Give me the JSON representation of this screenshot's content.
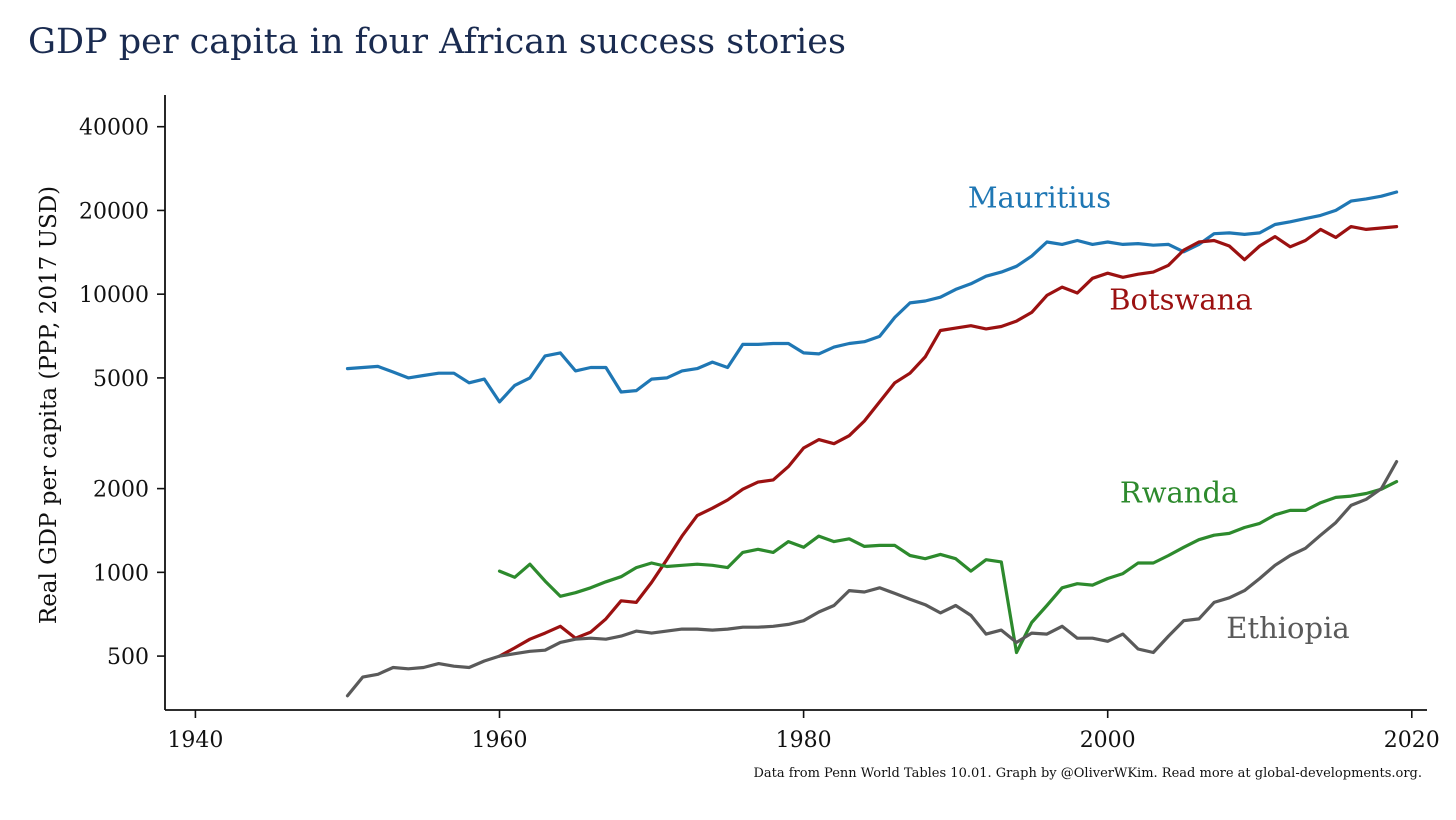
{
  "chart_data": {
    "type": "line",
    "title": "GDP per capita in four African success stories",
    "xlabel": "",
    "ylabel": "Real GDP per capita (PPP, 2017 USD)",
    "yscale": "log",
    "xlim": [
      1938,
      2021
    ],
    "ylim": [
      320,
      52000
    ],
    "x_ticks": [
      1940,
      1960,
      1980,
      2000,
      2020
    ],
    "y_ticks": [
      500,
      1000,
      2000,
      5000,
      10000,
      20000,
      40000
    ],
    "grid": false,
    "legend": "inline labels",
    "source_note": "Data from Penn World Tables 10.01. Graph by @OliverWKim. Read more at global-developments.org.",
    "series": [
      {
        "name": "Mauritius",
        "color": "#1f77b4",
        "x": [
          1950,
          1951,
          1952,
          1953,
          1954,
          1955,
          1956,
          1957,
          1958,
          1959,
          1960,
          1961,
          1962,
          1963,
          1964,
          1965,
          1966,
          1967,
          1968,
          1969,
          1970,
          1971,
          1972,
          1973,
          1974,
          1975,
          1976,
          1977,
          1978,
          1979,
          1980,
          1981,
          1982,
          1983,
          1984,
          1985,
          1986,
          1987,
          1988,
          1989,
          1990,
          1991,
          1992,
          1993,
          1994,
          1995,
          1996,
          1997,
          1998,
          1999,
          2000,
          2001,
          2002,
          2003,
          2004,
          2005,
          2006,
          2007,
          2008,
          2009,
          2010,
          2011,
          2012,
          2013,
          2014,
          2015,
          2016,
          2017,
          2018,
          2019
        ],
        "values": [
          5400,
          5450,
          5500,
          5250,
          5000,
          5100,
          5200,
          5200,
          4800,
          4950,
          4100,
          4700,
          5000,
          6000,
          6150,
          5300,
          5450,
          5450,
          4450,
          4500,
          4950,
          5000,
          5300,
          5400,
          5700,
          5450,
          6600,
          6600,
          6650,
          6650,
          6150,
          6100,
          6450,
          6650,
          6750,
          7050,
          8250,
          9300,
          9450,
          9750,
          10400,
          10900,
          11600,
          12000,
          12600,
          13700,
          15400,
          15100,
          15600,
          15100,
          15400,
          15100,
          15200,
          15000,
          15100,
          14200,
          15100,
          16500,
          16600,
          16400,
          16600,
          17800,
          18200,
          18700,
          19200,
          20000,
          21600,
          22000,
          22500,
          23300
        ]
      },
      {
        "name": "Botswana",
        "color": "#9b1111",
        "x": [
          1960,
          1961,
          1962,
          1963,
          1964,
          1965,
          1966,
          1967,
          1968,
          1969,
          1970,
          1971,
          1972,
          1973,
          1974,
          1975,
          1976,
          1977,
          1978,
          1979,
          1980,
          1981,
          1982,
          1983,
          1984,
          1985,
          1986,
          1987,
          1988,
          1989,
          1990,
          1991,
          1992,
          1993,
          1994,
          1995,
          1996,
          1997,
          1998,
          1999,
          2000,
          2001,
          2002,
          2003,
          2004,
          2005,
          2006,
          2007,
          2008,
          2009,
          2010,
          2011,
          2012,
          2013,
          2014,
          2015,
          2016,
          2017,
          2018,
          2019
        ],
        "values": [
          500,
          535,
          575,
          605,
          640,
          580,
          610,
          680,
          790,
          780,
          920,
          1110,
          1350,
          1600,
          1700,
          1820,
          1990,
          2110,
          2150,
          2400,
          2800,
          3000,
          2900,
          3100,
          3500,
          4100,
          4800,
          5200,
          5950,
          7400,
          7550,
          7700,
          7500,
          7650,
          8000,
          8600,
          9900,
          10600,
          10100,
          11400,
          11900,
          11500,
          11800,
          12000,
          12700,
          14400,
          15400,
          15600,
          14900,
          13300,
          14900,
          16100,
          14800,
          15600,
          17100,
          16000,
          17500,
          17100,
          17300,
          17500
        ]
      },
      {
        "name": "Rwanda",
        "color": "#2d8a2d",
        "x": [
          1960,
          1961,
          1962,
          1963,
          1964,
          1965,
          1966,
          1967,
          1968,
          1969,
          1970,
          1971,
          1972,
          1973,
          1974,
          1975,
          1976,
          1977,
          1978,
          1979,
          1980,
          1981,
          1982,
          1983,
          1984,
          1985,
          1986,
          1987,
          1988,
          1989,
          1990,
          1991,
          1992,
          1993,
          1994,
          1995,
          1996,
          1997,
          1998,
          1999,
          2000,
          2001,
          2002,
          2003,
          2004,
          2005,
          2006,
          2007,
          2008,
          2009,
          2010,
          2011,
          2012,
          2013,
          2014,
          2015,
          2016,
          2017,
          2018,
          2019
        ],
        "values": [
          1010,
          960,
          1070,
          930,
          820,
          845,
          880,
          925,
          965,
          1040,
          1080,
          1050,
          1060,
          1070,
          1060,
          1040,
          1180,
          1210,
          1180,
          1290,
          1230,
          1350,
          1290,
          1320,
          1240,
          1250,
          1250,
          1150,
          1120,
          1160,
          1120,
          1010,
          1110,
          1090,
          515,
          660,
          760,
          880,
          910,
          900,
          950,
          990,
          1080,
          1080,
          1150,
          1230,
          1310,
          1360,
          1380,
          1450,
          1500,
          1610,
          1670,
          1670,
          1780,
          1860,
          1880,
          1920,
          1990,
          2120
        ]
      },
      {
        "name": "Ethiopia",
        "color": "#5a5a5a",
        "x": [
          1950,
          1951,
          1952,
          1953,
          1954,
          1955,
          1956,
          1957,
          1958,
          1959,
          1960,
          1961,
          1962,
          1963,
          1964,
          1965,
          1966,
          1967,
          1968,
          1969,
          1970,
          1971,
          1972,
          1973,
          1974,
          1975,
          1976,
          1977,
          1978,
          1979,
          1980,
          1981,
          1982,
          1983,
          1984,
          1985,
          1986,
          1987,
          1988,
          1989,
          1990,
          1991,
          1992,
          1993,
          1994,
          1995,
          1996,
          1997,
          1998,
          1999,
          2000,
          2001,
          2002,
          2003,
          2004,
          2005,
          2006,
          2007,
          2008,
          2009,
          2010,
          2011,
          2012,
          2013,
          2014,
          2015,
          2016,
          2017,
          2018,
          2019
        ],
        "values": [
          360,
          420,
          430,
          455,
          450,
          455,
          470,
          460,
          455,
          480,
          500,
          510,
          520,
          525,
          560,
          575,
          580,
          575,
          590,
          615,
          605,
          615,
          625,
          625,
          620,
          625,
          635,
          635,
          640,
          650,
          670,
          720,
          760,
          860,
          850,
          880,
          840,
          800,
          765,
          715,
          760,
          700,
          600,
          620,
          560,
          605,
          600,
          640,
          580,
          580,
          565,
          600,
          530,
          515,
          590,
          670,
          680,
          780,
          810,
          860,
          950,
          1060,
          1150,
          1220,
          1360,
          1510,
          1740,
          1830,
          2000,
          2500
        ]
      }
    ],
    "annotations": [
      {
        "text": "Mauritius",
        "series": "Mauritius",
        "x": 1990.8,
        "y": 20500
      },
      {
        "text": "Botswana",
        "series": "Botswana",
        "x": 2000.1,
        "y": 8800
      },
      {
        "text": "Rwanda",
        "series": "Rwanda",
        "x": 2000.8,
        "y": 1780
      },
      {
        "text": "Ethiopia",
        "series": "Ethiopia",
        "x": 2007.8,
        "y": 580
      }
    ]
  }
}
